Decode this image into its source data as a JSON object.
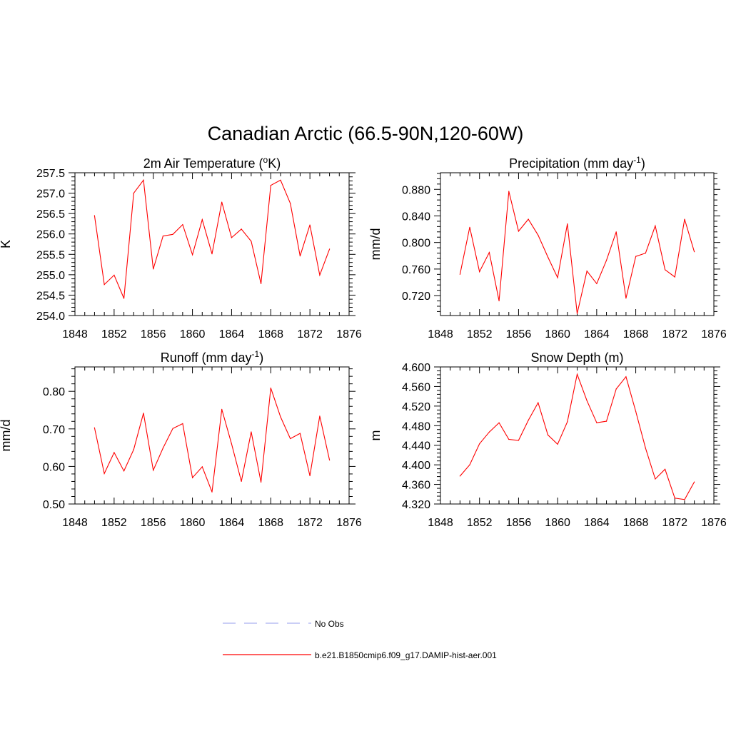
{
  "figure_title": "Canadian Arctic (66.5-90N,120-60W)",
  "panels": [
    {
      "title_main": "2m Air Temperature (",
      "title_sup": "o",
      "title_tail": "K)",
      "ylabel": "K"
    },
    {
      "title_main": "Precipitation (mm day",
      "title_sup": "-1",
      "title_tail": ")",
      "ylabel": "mm/d"
    },
    {
      "title_main": "Runoff (mm day",
      "title_sup": "-1",
      "title_tail": ")",
      "ylabel": "mm/d"
    },
    {
      "title_main": "Snow Depth (m)",
      "title_sup": "",
      "title_tail": "",
      "ylabel": "m"
    }
  ],
  "legend": {
    "items": [
      {
        "label": "No Obs",
        "color": "#aab0f0",
        "dashed": true
      },
      {
        "label": "b.e21.B1850cmip6.f09_g17.DAMIP-hist-aer.001",
        "color": "#ff0000",
        "dashed": false
      }
    ]
  },
  "chart_data": [
    {
      "type": "line",
      "title": "2m Air Temperature (oK)",
      "ylabel": "K",
      "xlim": [
        1848,
        1876
      ],
      "ylim": [
        254.0,
        257.5
      ],
      "xticks": [
        1848,
        1852,
        1856,
        1860,
        1864,
        1868,
        1872,
        1876
      ],
      "yticks": [
        "254.0",
        "254.5",
        "255.0",
        "255.5",
        "256.0",
        "256.5",
        "257.0",
        "257.5"
      ],
      "x": [
        1850,
        1851,
        1852,
        1853,
        1854,
        1855,
        1856,
        1857,
        1858,
        1859,
        1860,
        1861,
        1862,
        1863,
        1864,
        1865,
        1866,
        1867,
        1868,
        1869,
        1870,
        1871,
        1872,
        1873,
        1874
      ],
      "series": [
        {
          "name": "b.e21.B1850cmip6.f09_g17.DAMIP-hist-aer.001",
          "color": "#ff0000",
          "values": [
            256.45,
            254.76,
            254.99,
            254.42,
            257.0,
            257.32,
            255.14,
            255.95,
            255.99,
            256.23,
            255.49,
            256.35,
            255.51,
            256.78,
            255.91,
            256.12,
            255.82,
            254.78,
            257.19,
            257.32,
            256.75,
            255.46,
            256.22,
            254.99,
            255.63
          ]
        }
      ]
    },
    {
      "type": "line",
      "title": "Precipitation (mm day-1)",
      "ylabel": "mm/d",
      "xlim": [
        1848,
        1876
      ],
      "ylim": [
        0.69,
        0.905
      ],
      "xticks": [
        1848,
        1852,
        1856,
        1860,
        1864,
        1868,
        1872,
        1876
      ],
      "yticks": [
        "0.720",
        "0.760",
        "0.800",
        "0.840",
        "0.880"
      ],
      "x": [
        1850,
        1851,
        1852,
        1853,
        1854,
        1855,
        1856,
        1857,
        1858,
        1859,
        1860,
        1861,
        1862,
        1863,
        1864,
        1865,
        1866,
        1867,
        1868,
        1869,
        1870,
        1871,
        1872,
        1873,
        1874
      ],
      "series": [
        {
          "name": "b.e21.B1850cmip6.f09_g17.DAMIP-hist-aer.001",
          "color": "#ff0000",
          "values": [
            0.752,
            0.823,
            0.756,
            0.785,
            0.712,
            0.877,
            0.817,
            0.835,
            0.811,
            0.778,
            0.747,
            0.828,
            0.693,
            0.757,
            0.738,
            0.773,
            0.816,
            0.716,
            0.779,
            0.784,
            0.825,
            0.759,
            0.748,
            0.835,
            0.786
          ]
        }
      ]
    },
    {
      "type": "line",
      "title": "Runoff (mm day-1)",
      "ylabel": "mm/d",
      "xlim": [
        1848,
        1876
      ],
      "ylim": [
        0.5,
        0.865
      ],
      "xticks": [
        1848,
        1852,
        1856,
        1860,
        1864,
        1868,
        1872,
        1876
      ],
      "yticks": [
        "0.50",
        "0.60",
        "0.70",
        "0.80"
      ],
      "x": [
        1850,
        1851,
        1852,
        1853,
        1854,
        1855,
        1856,
        1857,
        1858,
        1859,
        1860,
        1861,
        1862,
        1863,
        1864,
        1865,
        1866,
        1867,
        1868,
        1869,
        1870,
        1871,
        1872,
        1873,
        1874
      ],
      "series": [
        {
          "name": "b.e21.B1850cmip6.f09_g17.DAMIP-hist-aer.001",
          "color": "#ff0000",
          "values": [
            0.703,
            0.581,
            0.637,
            0.588,
            0.645,
            0.742,
            0.59,
            0.649,
            0.701,
            0.714,
            0.57,
            0.599,
            0.532,
            0.752,
            0.66,
            0.56,
            0.692,
            0.558,
            0.809,
            0.732,
            0.674,
            0.688,
            0.575,
            0.734,
            0.617
          ]
        }
      ]
    },
    {
      "type": "line",
      "title": "Snow Depth (m)",
      "ylabel": "m",
      "xlim": [
        1848,
        1876
      ],
      "ylim": [
        4.32,
        4.6
      ],
      "xticks": [
        1848,
        1852,
        1856,
        1860,
        1864,
        1868,
        1872,
        1876
      ],
      "yticks": [
        "4.320",
        "4.360",
        "4.400",
        "4.440",
        "4.480",
        "4.520",
        "4.560",
        "4.600"
      ],
      "x": [
        1850,
        1851,
        1852,
        1853,
        1854,
        1855,
        1856,
        1857,
        1858,
        1859,
        1860,
        1861,
        1862,
        1863,
        1864,
        1865,
        1866,
        1867,
        1868,
        1869,
        1870,
        1871,
        1872,
        1873,
        1874
      ],
      "series": [
        {
          "name": "b.e21.B1850cmip6.f09_g17.DAMIP-hist-aer.001",
          "color": "#ff0000",
          "values": [
            4.377,
            4.4,
            4.443,
            4.467,
            4.486,
            4.452,
            4.45,
            4.491,
            4.527,
            4.461,
            4.442,
            4.488,
            4.585,
            4.531,
            4.486,
            4.489,
            4.555,
            4.58,
            4.509,
            4.434,
            4.371,
            4.391,
            4.332,
            4.329,
            4.365
          ]
        }
      ]
    }
  ]
}
